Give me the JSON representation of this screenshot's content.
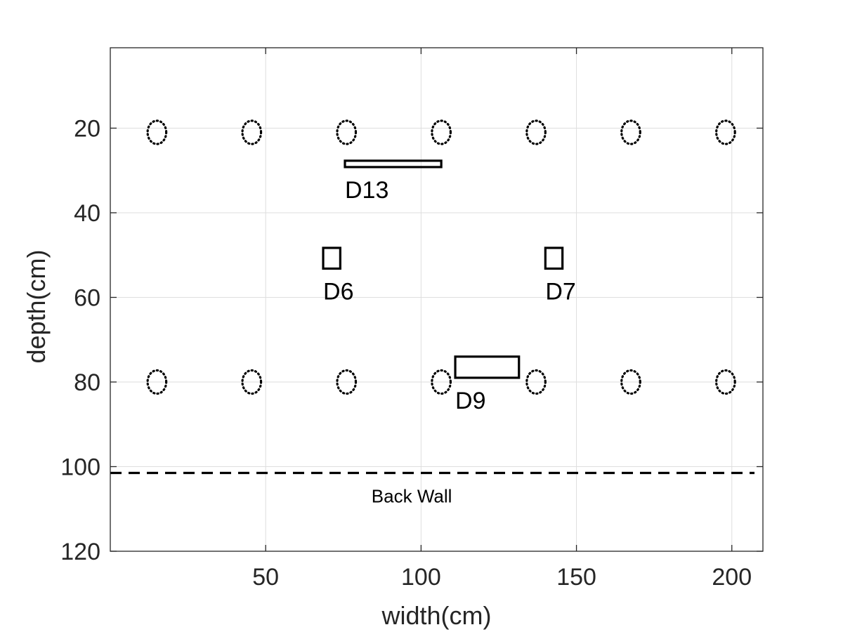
{
  "chart_data": {
    "type": "scatter",
    "title": "",
    "xlabel": "width(cm)",
    "ylabel": "depth(cm)",
    "xlim": [
      0,
      210
    ],
    "ylim": [
      120,
      1
    ],
    "y_reversed": true,
    "grid": true,
    "xticks": [
      50,
      100,
      150,
      200
    ],
    "yticks": [
      20,
      40,
      60,
      80,
      100,
      120
    ],
    "ellipses": {
      "style": "dotted",
      "rows": [
        {
          "y": 21,
          "x": [
            15,
            45.5,
            76,
            106.5,
            137,
            167.5,
            198
          ]
        },
        {
          "y": 80,
          "x": [
            15,
            45.5,
            76,
            106.5,
            137,
            167.5,
            198
          ]
        }
      ],
      "width": 6,
      "height": 5.5
    },
    "rectangles": [
      {
        "label": "D13",
        "x0": 75.5,
        "x1": 106.5,
        "y0": 27.7,
        "y1": 29.2
      },
      {
        "label": "D6",
        "x0": 68.5,
        "x1": 74,
        "y0": 48.3,
        "y1": 53.2
      },
      {
        "label": "D7",
        "x0": 140,
        "x1": 145.5,
        "y0": 48.3,
        "y1": 53.2
      },
      {
        "label": "D9",
        "x0": 111,
        "x1": 131.5,
        "y0": 74,
        "y1": 79
      }
    ],
    "wall": {
      "y": 101.5,
      "style": "dashed",
      "label": "Back Wall"
    }
  },
  "colors": {
    "grid": "#dedede",
    "axes": "#262626",
    "marks": "#000000"
  }
}
